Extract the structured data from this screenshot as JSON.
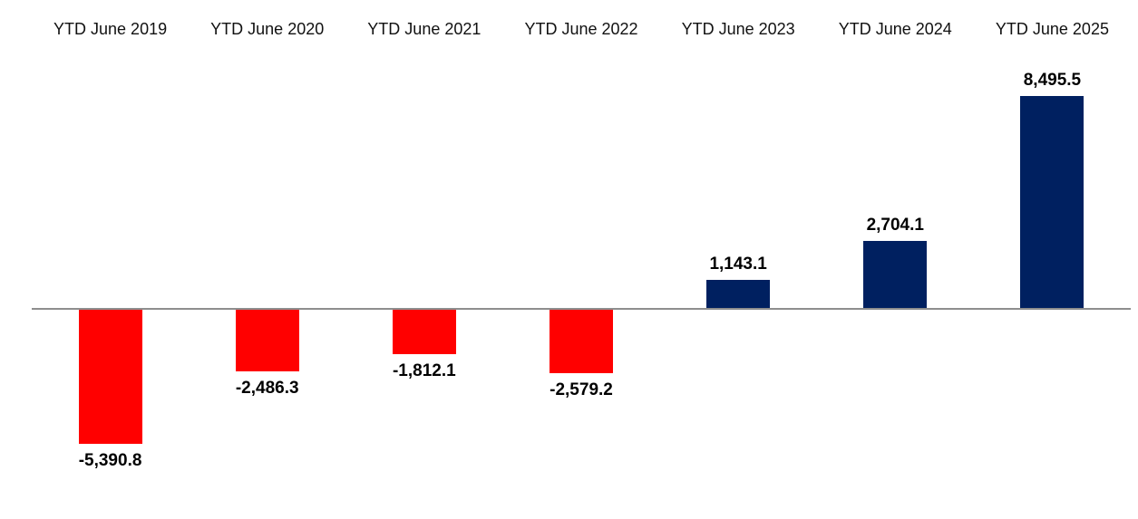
{
  "chart_data": {
    "type": "bar",
    "categories": [
      "YTD June 2019",
      "YTD June 2020",
      "YTD June 2021",
      "YTD June 2022",
      "YTD June 2023",
      "YTD June 2024",
      "YTD June 2025"
    ],
    "values": [
      -5390.8,
      -2486.3,
      -1812.1,
      -2579.2,
      1143.1,
      2704.1,
      8495.5
    ],
    "value_labels": [
      "-5,390.8",
      "-2,486.3",
      "-1,812.1",
      "-2,579.2",
      "1,143.1",
      "2,704.1",
      "8,495.5"
    ],
    "title": "",
    "xlabel": "",
    "ylabel": "",
    "ylim": [
      -5800,
      8800
    ],
    "grid": false,
    "legend": false,
    "category_labels_position": "top",
    "data_labels": "outside-end",
    "colors": {
      "positive_bar": "#002060",
      "negative_bar": "#ff0000",
      "axis_line": "#8e8e8e",
      "category_text": "#111111",
      "value_text": "#000000",
      "background": "#ffffff"
    }
  }
}
